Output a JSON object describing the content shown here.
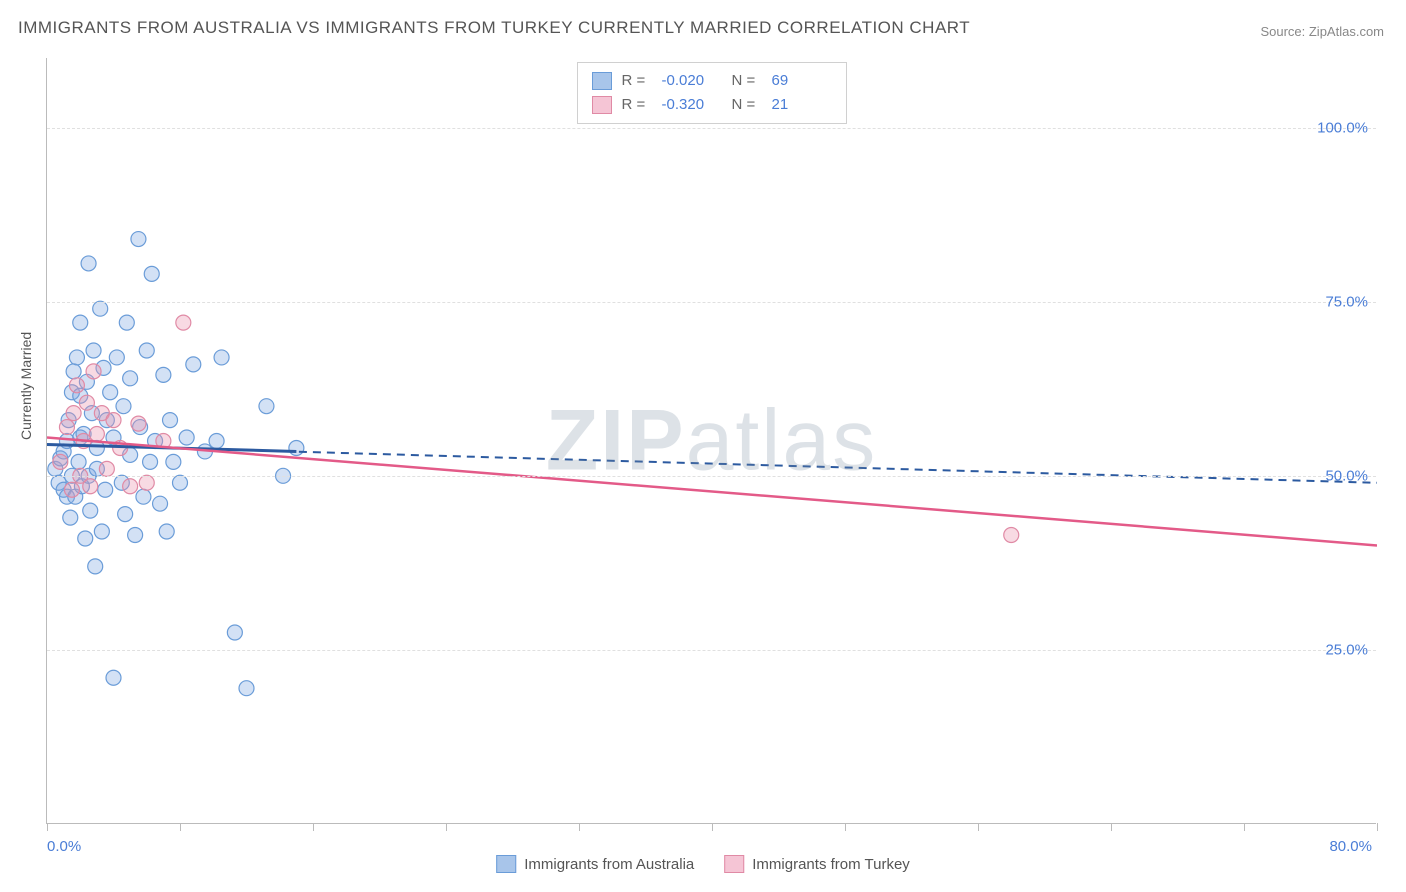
{
  "title": "IMMIGRANTS FROM AUSTRALIA VS IMMIGRANTS FROM TURKEY CURRENTLY MARRIED CORRELATION CHART",
  "source": "Source: ZipAtlas.com",
  "ylabel": "Currently Married",
  "watermark": {
    "part1": "ZIP",
    "part2": "atlas"
  },
  "chart": {
    "type": "scatter",
    "background_color": "#ffffff",
    "grid_color": "#e0e0e0",
    "axis_color": "#bbbbbb",
    "tick_label_color": "#4a7dd6",
    "xlim": [
      0,
      80
    ],
    "ylim": [
      0,
      110
    ],
    "yticks": [
      25,
      50,
      75,
      100
    ],
    "ytick_labels": [
      "25.0%",
      "50.0%",
      "75.0%",
      "100.0%"
    ],
    "xticks_minor": [
      0,
      8,
      16,
      24,
      32,
      40,
      48,
      56,
      64,
      72,
      80
    ],
    "xtick_labels": {
      "0": "0.0%",
      "80": "80.0%"
    },
    "marker_radius": 7.5,
    "marker_stroke_width": 1.2,
    "series": [
      {
        "name": "Immigrants from Australia",
        "fill": "rgba(130,170,225,0.35)",
        "stroke": "#6a9cd8",
        "swatch_fill": "#a8c5ea",
        "swatch_border": "#6a9cd8",
        "R": "-0.020",
        "N": "69",
        "trend": {
          "color": "#2c5aa0",
          "dashed": true,
          "width": 2,
          "x1": 0,
          "y1": 54.5,
          "x2": 80,
          "y2": 49
        },
        "solid_segment": {
          "color": "#2c5aa0",
          "width": 3,
          "x1": 0,
          "y1": 54.5,
          "x2": 15,
          "y2": 53.5
        },
        "points": [
          [
            0.5,
            51
          ],
          [
            0.7,
            49
          ],
          [
            0.8,
            52.5
          ],
          [
            1.0,
            48
          ],
          [
            1.0,
            53.5
          ],
          [
            1.2,
            47
          ],
          [
            1.2,
            55
          ],
          [
            1.3,
            58
          ],
          [
            1.4,
            44
          ],
          [
            1.5,
            62
          ],
          [
            1.5,
            50
          ],
          [
            1.6,
            65
          ],
          [
            1.7,
            47
          ],
          [
            1.8,
            67
          ],
          [
            1.9,
            52
          ],
          [
            2.0,
            61.5
          ],
          [
            2.0,
            55.5
          ],
          [
            2.0,
            72
          ],
          [
            2.1,
            48.5
          ],
          [
            2.2,
            56
          ],
          [
            2.3,
            41
          ],
          [
            2.4,
            63.5
          ],
          [
            2.5,
            80.5
          ],
          [
            2.5,
            50
          ],
          [
            2.6,
            45
          ],
          [
            2.7,
            59
          ],
          [
            2.8,
            68
          ],
          [
            2.9,
            37
          ],
          [
            3.0,
            54
          ],
          [
            3.0,
            51
          ],
          [
            3.2,
            74
          ],
          [
            3.3,
            42
          ],
          [
            3.4,
            65.5
          ],
          [
            3.5,
            48
          ],
          [
            3.6,
            58
          ],
          [
            3.8,
            62
          ],
          [
            4.0,
            55.5
          ],
          [
            4.0,
            21
          ],
          [
            4.2,
            67
          ],
          [
            4.5,
            49
          ],
          [
            4.6,
            60
          ],
          [
            4.7,
            44.5
          ],
          [
            4.8,
            72
          ],
          [
            5.0,
            53
          ],
          [
            5.0,
            64
          ],
          [
            5.3,
            41.5
          ],
          [
            5.5,
            84
          ],
          [
            5.6,
            57
          ],
          [
            5.8,
            47
          ],
          [
            6.0,
            68
          ],
          [
            6.2,
            52
          ],
          [
            6.3,
            79
          ],
          [
            6.5,
            55
          ],
          [
            6.8,
            46
          ],
          [
            7.0,
            64.5
          ],
          [
            7.2,
            42
          ],
          [
            7.4,
            58
          ],
          [
            7.6,
            52
          ],
          [
            8.0,
            49
          ],
          [
            8.4,
            55.5
          ],
          [
            8.8,
            66
          ],
          [
            9.5,
            53.5
          ],
          [
            10.2,
            55
          ],
          [
            10.5,
            67
          ],
          [
            11.3,
            27.5
          ],
          [
            12.0,
            19.5
          ],
          [
            13.2,
            60
          ],
          [
            14.2,
            50
          ],
          [
            15.0,
            54
          ]
        ]
      },
      {
        "name": "Immigrants from Turkey",
        "fill": "rgba(235,150,175,0.35)",
        "stroke": "#e08aa5",
        "swatch_fill": "#f5c5d5",
        "swatch_border": "#e08aa5",
        "R": "-0.320",
        "N": "21",
        "trend": {
          "color": "#e35a88",
          "dashed": false,
          "width": 2.5,
          "x1": 0,
          "y1": 55.5,
          "x2": 80,
          "y2": 40
        },
        "points": [
          [
            0.8,
            52
          ],
          [
            1.2,
            57
          ],
          [
            1.5,
            48
          ],
          [
            1.6,
            59
          ],
          [
            1.8,
            63
          ],
          [
            2.0,
            50
          ],
          [
            2.2,
            55
          ],
          [
            2.4,
            60.5
          ],
          [
            2.6,
            48.5
          ],
          [
            2.8,
            65
          ],
          [
            3.0,
            56
          ],
          [
            3.3,
            59
          ],
          [
            3.6,
            51
          ],
          [
            4.0,
            58
          ],
          [
            4.4,
            54
          ],
          [
            5.0,
            48.5
          ],
          [
            5.5,
            57.5
          ],
          [
            6.0,
            49
          ],
          [
            7.0,
            55
          ],
          [
            8.2,
            72
          ],
          [
            58,
            41.5
          ]
        ]
      }
    ]
  },
  "legend_bottom": [
    {
      "label": "Immigrants from Australia",
      "fill": "#a8c5ea",
      "border": "#6a9cd8"
    },
    {
      "label": "Immigrants from Turkey",
      "fill": "#f5c5d5",
      "border": "#e08aa5"
    }
  ]
}
